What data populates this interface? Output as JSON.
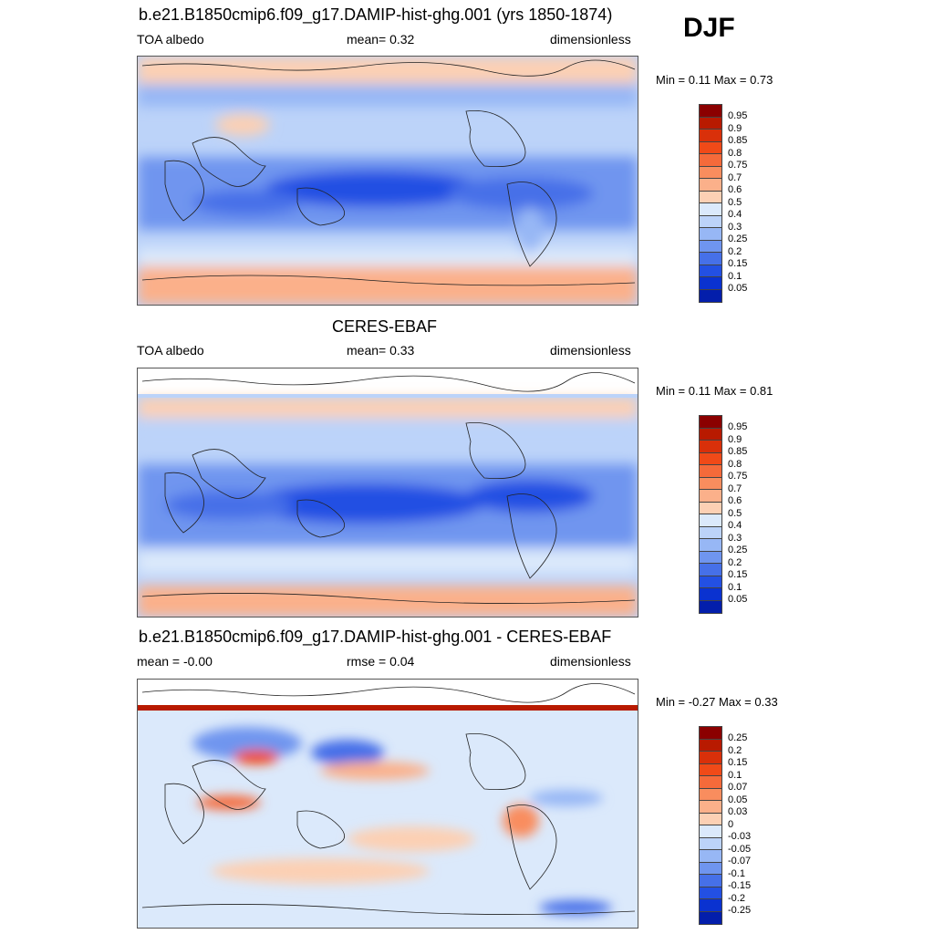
{
  "season": "DJF",
  "colorbars": {
    "positive_colors": [
      "#8b0000",
      "#b81a00",
      "#d9300a",
      "#f04a18",
      "#f56a3a",
      "#f98d5e",
      "#fbb08a",
      "#fcd0b4",
      "#fdebdc",
      "#dbe9fb",
      "#bcd3f9",
      "#97b7f5",
      "#6f95ef",
      "#4670e8",
      "#2350e3",
      "#0a32d0",
      "#031eab",
      "#000080"
    ],
    "signed_colors": [
      "#8b0000",
      "#b81a00",
      "#d9300a",
      "#f04a18",
      "#f56a3a",
      "#f98d5e",
      "#fbb08a",
      "#fcd0b4",
      "#fdeee2",
      "#dbe9fb",
      "#bcd3f9",
      "#97b7f5",
      "#6f95ef",
      "#4670e8",
      "#2350e3",
      "#0a32d0",
      "#031eab",
      "#000080"
    ]
  },
  "panels": [
    {
      "title": "b.e21.B1850cmip6.f09_g17.DAMIP-hist-ghg.001 (yrs 1850-1874)",
      "left_label": "TOA albedo",
      "center_label": "mean=   0.32",
      "right_label": "dimensionless",
      "minmax": "Min =   0.11 Max =   0.73",
      "colorbar_labels": [
        "0.95",
        "0.9",
        "0.85",
        "0.8",
        "0.75",
        "0.7",
        "0.6",
        "0.5",
        "0.4",
        "0.3",
        "0.25",
        "0.2",
        "0.15",
        "0.1",
        "0.05"
      ]
    },
    {
      "title": "CERES-EBAF",
      "left_label": "TOA albedo",
      "center_label": "mean=   0.33",
      "right_label": "dimensionless",
      "minmax": "Min =   0.11 Max =   0.81",
      "colorbar_labels": [
        "0.95",
        "0.9",
        "0.85",
        "0.8",
        "0.75",
        "0.7",
        "0.6",
        "0.5",
        "0.4",
        "0.3",
        "0.25",
        "0.2",
        "0.15",
        "0.1",
        "0.05"
      ]
    },
    {
      "title": "b.e21.B1850cmip6.f09_g17.DAMIP-hist-ghg.001 - CERES-EBAF",
      "left_label": "mean =  -0.00",
      "center_label": "rmse =   0.04",
      "right_label": "dimensionless",
      "minmax": "Min =  -0.27 Max =   0.33",
      "colorbar_labels": [
        "0.25",
        "0.2",
        "0.15",
        "0.1",
        "0.07",
        "0.05",
        "0.03",
        "0",
        "-0.03",
        "-0.05",
        "-0.07",
        "-0.1",
        "-0.15",
        "-0.2",
        "-0.25"
      ]
    }
  ]
}
